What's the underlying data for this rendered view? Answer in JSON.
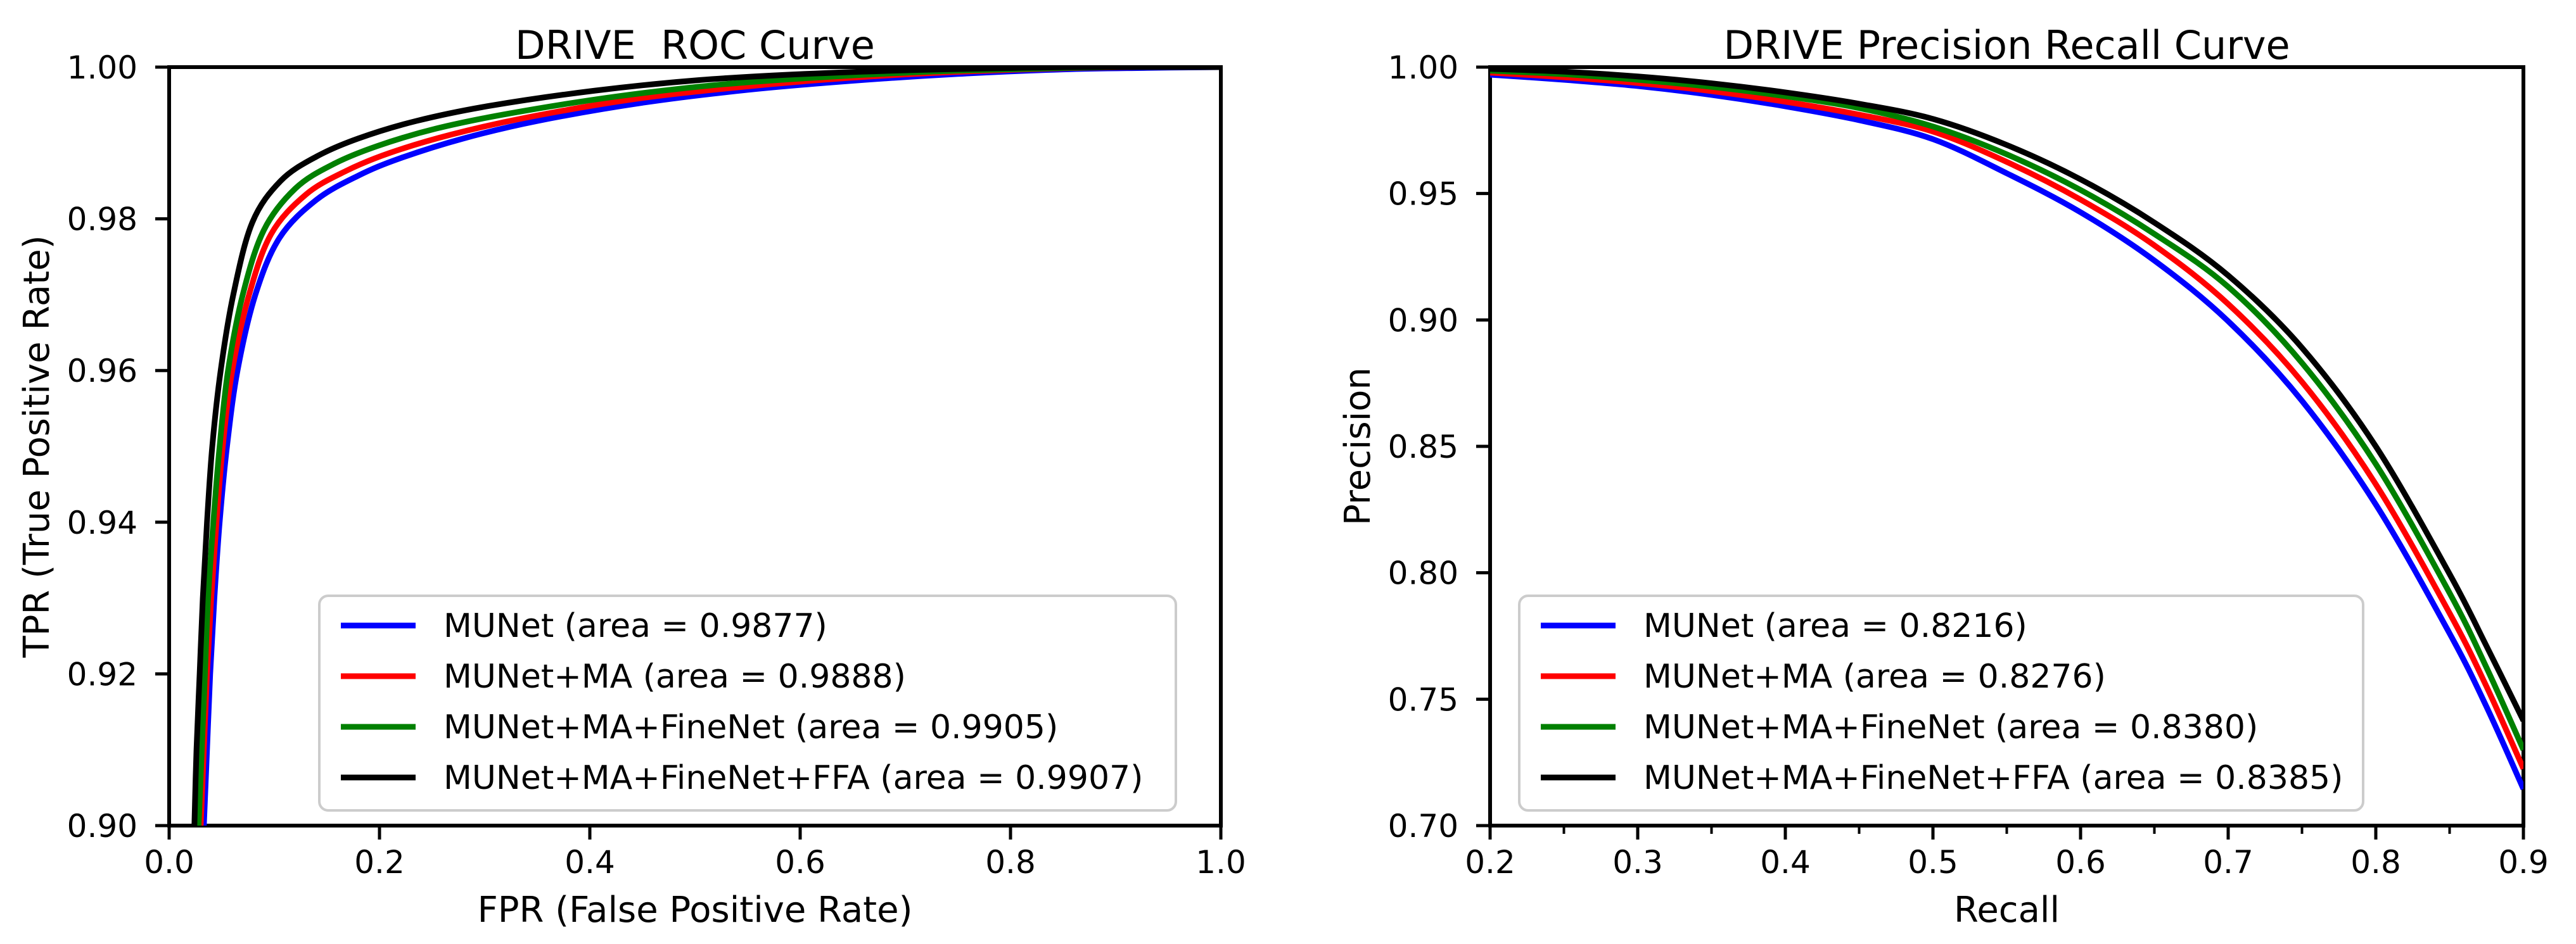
{
  "figure": {
    "background": "#ffffff",
    "axis_color": "#000000",
    "legend_border_color": "#cccccc",
    "legend_fill": "#ffffff"
  },
  "chart_data": [
    {
      "id": "roc",
      "type": "line",
      "title": "DRIVE  ROC Curve",
      "xlabel": "FPR (False Positive Rate)",
      "ylabel": "TPR (True Positive Rate)",
      "xlim": [
        0.0,
        1.0
      ],
      "ylim": [
        0.9,
        1.0
      ],
      "xticks": [
        0.0,
        0.2,
        0.4,
        0.6,
        0.8,
        1.0
      ],
      "xtick_labels": [
        "0.0",
        "0.2",
        "0.4",
        "0.6",
        "0.8",
        "1.0"
      ],
      "xticks_minor": [],
      "yticks": [
        0.9,
        0.92,
        0.94,
        0.96,
        0.98,
        1.0
      ],
      "ytick_labels": [
        "0.90",
        "0.92",
        "0.94",
        "0.96",
        "0.98",
        "1.00"
      ],
      "grid": false,
      "legend_location": "lower left inside",
      "series": [
        {
          "name": "munet",
          "label": "MUNet (area = 0.9877)",
          "color": "#0000ff",
          "area": 0.9877,
          "points": [
            [
              0.033,
              0.9
            ],
            [
              0.036,
              0.91
            ],
            [
              0.039,
              0.92
            ],
            [
              0.043,
              0.93
            ],
            [
              0.048,
              0.94
            ],
            [
              0.055,
              0.95
            ],
            [
              0.065,
              0.96
            ],
            [
              0.082,
              0.97
            ],
            [
              0.105,
              0.9775
            ],
            [
              0.14,
              0.9825
            ],
            [
              0.18,
              0.9857
            ],
            [
              0.22,
              0.988
            ],
            [
              0.28,
              0.9906
            ],
            [
              0.35,
              0.9929
            ],
            [
              0.45,
              0.9953
            ],
            [
              0.55,
              0.997
            ],
            [
              0.65,
              0.9982
            ],
            [
              0.75,
              0.9991
            ],
            [
              0.85,
              0.9997
            ],
            [
              0.93,
              0.9999
            ],
            [
              1.0,
              1.0
            ]
          ]
        },
        {
          "name": "munet-ma",
          "label": "MUNet+MA (area = 0.9888)",
          "color": "#ff0000",
          "area": 0.9888,
          "points": [
            [
              0.03,
              0.9
            ],
            [
              0.033,
              0.91
            ],
            [
              0.036,
              0.92
            ],
            [
              0.04,
              0.93
            ],
            [
              0.045,
              0.94
            ],
            [
              0.051,
              0.95
            ],
            [
              0.06,
              0.96
            ],
            [
              0.076,
              0.97
            ],
            [
              0.097,
              0.978
            ],
            [
              0.13,
              0.9832
            ],
            [
              0.168,
              0.9863
            ],
            [
              0.21,
              0.9887
            ],
            [
              0.268,
              0.9911
            ],
            [
              0.338,
              0.9933
            ],
            [
              0.438,
              0.9957
            ],
            [
              0.538,
              0.9973
            ],
            [
              0.638,
              0.9985
            ],
            [
              0.738,
              0.9993
            ],
            [
              0.838,
              0.9998
            ],
            [
              0.92,
              1.0
            ],
            [
              1.0,
              1.0
            ]
          ]
        },
        {
          "name": "munet-ma-finenet",
          "label": "MUNet+MA+FineNet (area = 0.9905)",
          "color": "#008000",
          "area": 0.9905,
          "points": [
            [
              0.028,
              0.9
            ],
            [
              0.031,
              0.91
            ],
            [
              0.034,
              0.92
            ],
            [
              0.037,
              0.93
            ],
            [
              0.042,
              0.94
            ],
            [
              0.048,
              0.95
            ],
            [
              0.056,
              0.96
            ],
            [
              0.07,
              0.97
            ],
            [
              0.09,
              0.9785
            ],
            [
              0.12,
              0.984
            ],
            [
              0.156,
              0.9872
            ],
            [
              0.198,
              0.9896
            ],
            [
              0.254,
              0.9919
            ],
            [
              0.324,
              0.9939
            ],
            [
              0.424,
              0.9961
            ],
            [
              0.524,
              0.9977
            ],
            [
              0.624,
              0.9987
            ],
            [
              0.724,
              0.9994
            ],
            [
              0.824,
              0.9998
            ],
            [
              0.905,
              1.0
            ],
            [
              1.0,
              1.0
            ]
          ]
        },
        {
          "name": "munet-ma-finenet-ffa",
          "label": "MUNet+MA+FineNet+FFA (area = 0.9907)",
          "color": "#000000",
          "area": 0.9907,
          "points": [
            [
              0.024,
              0.9
            ],
            [
              0.026,
              0.91
            ],
            [
              0.029,
              0.92
            ],
            [
              0.032,
              0.93
            ],
            [
              0.036,
              0.94
            ],
            [
              0.041,
              0.95
            ],
            [
              0.049,
              0.96
            ],
            [
              0.061,
              0.97
            ],
            [
              0.079,
              0.9795
            ],
            [
              0.106,
              0.985
            ],
            [
              0.14,
              0.9882
            ],
            [
              0.18,
              0.9906
            ],
            [
              0.235,
              0.9929
            ],
            [
              0.305,
              0.9949
            ],
            [
              0.405,
              0.9969
            ],
            [
              0.505,
              0.9983
            ],
            [
              0.605,
              0.9991
            ],
            [
              0.705,
              0.9996
            ],
            [
              0.805,
              0.9999
            ],
            [
              0.87,
              1.0
            ],
            [
              1.0,
              1.0
            ]
          ]
        }
      ]
    },
    {
      "id": "pr",
      "type": "line",
      "title": "DRIVE Precision Recall Curve",
      "xlabel": "Recall",
      "ylabel": "Precision",
      "xlim": [
        0.2,
        0.9
      ],
      "ylim": [
        0.7,
        1.0
      ],
      "xticks": [
        0.2,
        0.3,
        0.4,
        0.5,
        0.6,
        0.7,
        0.8,
        0.9
      ],
      "xtick_labels": [
        "0.2",
        "0.3",
        "0.4",
        "0.5",
        "0.6",
        "0.7",
        "0.8",
        "0.9"
      ],
      "xticks_minor": [
        0.25,
        0.35,
        0.45,
        0.55,
        0.65,
        0.75,
        0.85
      ],
      "yticks": [
        0.7,
        0.75,
        0.8,
        0.85,
        0.9,
        0.95,
        1.0
      ],
      "ytick_labels": [
        "0.70",
        "0.75",
        "0.80",
        "0.85",
        "0.90",
        "0.95",
        "1.00"
      ],
      "grid": false,
      "legend_location": "lower left inside",
      "series": [
        {
          "name": "munet",
          "label": "MUNet (area = 0.8216)",
          "color": "#0000ff",
          "area": 0.8216,
          "points": [
            [
              0.2,
              0.997
            ],
            [
              0.25,
              0.995
            ],
            [
              0.3,
              0.9925
            ],
            [
              0.35,
              0.989
            ],
            [
              0.4,
              0.9845
            ],
            [
              0.45,
              0.979
            ],
            [
              0.5,
              0.9715
            ],
            [
              0.55,
              0.958
            ],
            [
              0.6,
              0.9426
            ],
            [
              0.65,
              0.9235
            ],
            [
              0.7,
              0.8995
            ],
            [
              0.75,
              0.868
            ],
            [
              0.8,
              0.827
            ],
            [
              0.85,
              0.776
            ],
            [
              0.875,
              0.747
            ],
            [
              0.9,
              0.7145
            ]
          ]
        },
        {
          "name": "munet-ma",
          "label": "MUNet+MA (area = 0.8276)",
          "color": "#ff0000",
          "area": 0.8276,
          "points": [
            [
              0.2,
              0.9978
            ],
            [
              0.25,
              0.996
            ],
            [
              0.3,
              0.9937
            ],
            [
              0.35,
              0.9905
            ],
            [
              0.4,
              0.9863
            ],
            [
              0.45,
              0.9812
            ],
            [
              0.5,
              0.9745
            ],
            [
              0.55,
              0.9625
            ],
            [
              0.6,
              0.9476
            ],
            [
              0.65,
              0.9295
            ],
            [
              0.7,
              0.9063
            ],
            [
              0.75,
              0.8755
            ],
            [
              0.8,
              0.835
            ],
            [
              0.85,
              0.784
            ],
            [
              0.875,
              0.755
            ],
            [
              0.9,
              0.7225
            ]
          ]
        },
        {
          "name": "munet-ma-finenet",
          "label": "MUNet+MA+FineNet (area = 0.8380)",
          "color": "#008000",
          "area": 0.838,
          "points": [
            [
              0.2,
              0.9986
            ],
            [
              0.25,
              0.9972
            ],
            [
              0.3,
              0.995
            ],
            [
              0.35,
              0.9922
            ],
            [
              0.4,
              0.9885
            ],
            [
              0.45,
              0.9838
            ],
            [
              0.5,
              0.9765
            ],
            [
              0.55,
              0.9655
            ],
            [
              0.6,
              0.9514
            ],
            [
              0.65,
              0.934
            ],
            [
              0.7,
              0.9131
            ],
            [
              0.75,
              0.883
            ],
            [
              0.8,
              0.843
            ],
            [
              0.85,
              0.792
            ],
            [
              0.875,
              0.7625
            ],
            [
              0.9,
              0.73
            ]
          ]
        },
        {
          "name": "munet-ma-finenet-ffa",
          "label": "MUNet+MA+FineNet+FFA (area = 0.8385)",
          "color": "#000000",
          "area": 0.8385,
          "points": [
            [
              0.2,
              0.9993
            ],
            [
              0.25,
              0.9982
            ],
            [
              0.3,
              0.9963
            ],
            [
              0.35,
              0.9936
            ],
            [
              0.4,
              0.99
            ],
            [
              0.45,
              0.9855
            ],
            [
              0.5,
              0.9795
            ],
            [
              0.55,
              0.9692
            ],
            [
              0.6,
              0.9556
            ],
            [
              0.65,
              0.9385
            ],
            [
              0.7,
              0.9176
            ],
            [
              0.75,
              0.889
            ],
            [
              0.8,
              0.85
            ],
            [
              0.85,
              0.7995
            ],
            [
              0.875,
              0.771
            ],
            [
              0.9,
              0.7415
            ]
          ]
        }
      ]
    }
  ]
}
